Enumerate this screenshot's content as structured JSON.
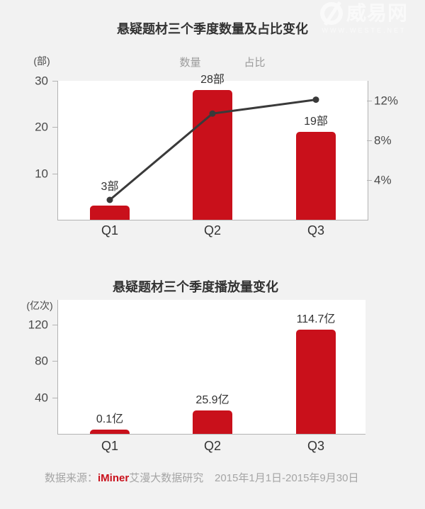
{
  "colors": {
    "background": "#f2f2f2",
    "plot_background": "#ffffff",
    "bar": "#c9101b",
    "line": "#3a3a3a",
    "axis": "#b3b3b3",
    "title_text": "#333333",
    "tick_text": "#4a4a4a",
    "legend_text": "#9b9b9b",
    "footer_text": "#a5a5a5",
    "brand_red": "#c9101b",
    "watermark": "#fafafa"
  },
  "watermark": {
    "name": "威易网",
    "url": "WWW.WESTE.NET",
    "logo_icon": "weste-c-logo-icon"
  },
  "chart_data": [
    {
      "type": "bar+line",
      "title": "悬疑题材三个季度数量及占比变化",
      "categories": [
        "Q1",
        "Q2",
        "Q3"
      ],
      "series": [
        {
          "name": "数量",
          "type": "bar",
          "axis": "left",
          "unit": "部",
          "values": [
            3,
            28,
            19
          ],
          "labels": [
            "3部",
            "28部",
            "19部"
          ],
          "color": "#c9101b"
        },
        {
          "name": "占比",
          "type": "line",
          "axis": "right",
          "unit": "%",
          "values": [
            2,
            10.7,
            12.1
          ],
          "values_estimated": true,
          "color": "#3a3a3a"
        }
      ],
      "left_axis": {
        "label": "(部)",
        "ticks": [
          10,
          20,
          30
        ],
        "min": 0,
        "max": 30
      },
      "right_axis": {
        "tick_labels": [
          "4%",
          "8%",
          "12%"
        ],
        "tick_values": [
          4,
          8,
          12
        ],
        "min": 0,
        "max": 14
      },
      "legend_position": "top-center",
      "grid": false
    },
    {
      "type": "bar",
      "title": "悬疑题材三个季度播放量变化",
      "categories": [
        "Q1",
        "Q2",
        "Q3"
      ],
      "values": [
        0.1,
        25.9,
        114.7
      ],
      "labels": [
        "0.1亿",
        "25.9亿",
        "114.7亿"
      ],
      "left_axis": {
        "label": "(亿次)",
        "ticks": [
          40,
          80,
          120
        ],
        "min": 0,
        "max": 147
      },
      "grid": false
    }
  ],
  "footer": {
    "source_prefix": "数据来源：",
    "source_brand": "iMiner",
    "source_suffix": "艾漫大数据研究",
    "date_range": "2015年1月1日-2015年9月30日"
  }
}
